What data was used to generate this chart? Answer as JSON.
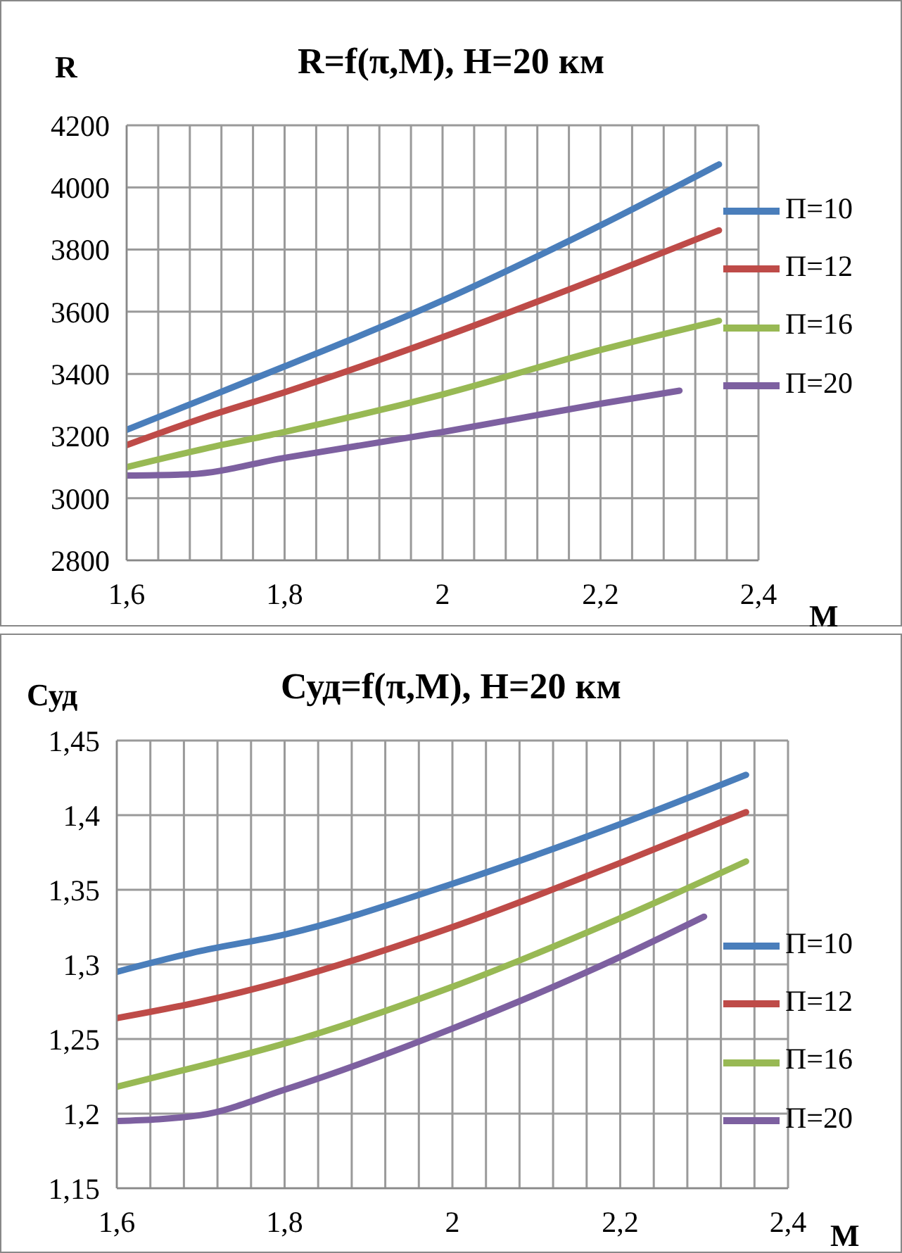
{
  "chart_data": [
    {
      "type": "line",
      "title": "R=f(π,M), H=20 км",
      "ylabel": "R",
      "xlabel": "M",
      "legend": "right",
      "grid": true,
      "line_style": "solid",
      "marker": "none",
      "xlim": [
        1.6,
        2.4
      ],
      "xticks": [
        {
          "value": 1.6,
          "label": "1,6"
        },
        {
          "value": 1.64,
          "label": null
        },
        {
          "value": 1.68,
          "label": null
        },
        {
          "value": 1.72,
          "label": null
        },
        {
          "value": 1.76,
          "label": null
        },
        {
          "value": 1.8,
          "label": "1,8"
        },
        {
          "value": 1.84,
          "label": null
        },
        {
          "value": 1.88,
          "label": null
        },
        {
          "value": 1.92,
          "label": null
        },
        {
          "value": 1.96,
          "label": null
        },
        {
          "value": 2,
          "label": "2"
        },
        {
          "value": 2.04,
          "label": null
        },
        {
          "value": 2.08,
          "label": null
        },
        {
          "value": 2.12,
          "label": null
        },
        {
          "value": 2.16,
          "label": null
        },
        {
          "value": 2.2,
          "label": "2,2"
        },
        {
          "value": 2.24,
          "label": null
        },
        {
          "value": 2.28,
          "label": null
        },
        {
          "value": 2.32,
          "label": null
        },
        {
          "value": 2.36,
          "label": null
        },
        {
          "value": 2.4,
          "label": "2,4"
        }
      ],
      "ylim": [
        2800,
        4200
      ],
      "yticks": [
        2800,
        3000,
        3200,
        3400,
        3600,
        3800,
        4000,
        4200
      ],
      "series": [
        {
          "name": "П=10",
          "color": "#4a7ebb",
          "x": [
            1.6,
            1.7,
            1.8,
            2.0,
            2.2,
            2.35
          ],
          "values": [
            3220,
            3322,
            3424,
            3636,
            3878,
            4074
          ]
        },
        {
          "name": "П=12",
          "color": "#be4b48",
          "x": [
            1.6,
            1.7,
            1.8,
            2.0,
            2.2,
            2.35
          ],
          "values": [
            3171,
            3261,
            3341,
            3518,
            3711,
            3862
          ]
        },
        {
          "name": "П=16",
          "color": "#98b954",
          "x": [
            1.6,
            1.7,
            1.8,
            2.0,
            2.2,
            2.35
          ],
          "values": [
            3100,
            3160,
            3213,
            3334,
            3477,
            3571
          ]
        },
        {
          "name": "П=20",
          "color": "#7d60a0",
          "x": [
            1.6,
            1.68,
            1.8,
            2.0,
            2.2,
            2.3
          ],
          "values": [
            3073,
            3077,
            3130,
            3213,
            3304,
            3346
          ]
        }
      ]
    },
    {
      "type": "line",
      "title": "Суд=f(π,M), H=20 км",
      "ylabel": "Суд",
      "xlabel": "M",
      "legend": "right",
      "grid": true,
      "line_style": "solid",
      "marker": "none",
      "xlim": [
        1.6,
        2.4
      ],
      "xticks": [
        {
          "value": 1.6,
          "label": "1,6"
        },
        {
          "value": 1.64,
          "label": null
        },
        {
          "value": 1.68,
          "label": null
        },
        {
          "value": 1.72,
          "label": null
        },
        {
          "value": 1.76,
          "label": null
        },
        {
          "value": 1.8,
          "label": "1,8"
        },
        {
          "value": 1.84,
          "label": null
        },
        {
          "value": 1.88,
          "label": null
        },
        {
          "value": 1.92,
          "label": null
        },
        {
          "value": 1.96,
          "label": null
        },
        {
          "value": 2,
          "label": "2"
        },
        {
          "value": 2.04,
          "label": null
        },
        {
          "value": 2.08,
          "label": null
        },
        {
          "value": 2.12,
          "label": null
        },
        {
          "value": 2.16,
          "label": null
        },
        {
          "value": 2.2,
          "label": "2,2"
        },
        {
          "value": 2.24,
          "label": null
        },
        {
          "value": 2.28,
          "label": null
        },
        {
          "value": 2.32,
          "label": null
        },
        {
          "value": 2.36,
          "label": null
        },
        {
          "value": 2.4,
          "label": "2,4"
        }
      ],
      "ylim": [
        1.15,
        1.45
      ],
      "yticks": [
        {
          "value": 1.15,
          "label": "1,15"
        },
        {
          "value": 1.2,
          "label": "1,2"
        },
        {
          "value": 1.25,
          "label": "1,25"
        },
        {
          "value": 1.3,
          "label": "1,3"
        },
        {
          "value": 1.35,
          "label": "1,35"
        },
        {
          "value": 1.4,
          "label": "1,4"
        },
        {
          "value": 1.45,
          "label": "1,45"
        }
      ],
      "series": [
        {
          "name": "П=10",
          "color": "#4a7ebb",
          "x": [
            1.6,
            1.7,
            1.8,
            2.0,
            2.2,
            2.35
          ],
          "values": [
            1.295,
            1.309,
            1.32,
            1.354,
            1.394,
            1.427
          ]
        },
        {
          "name": "П=12",
          "color": "#be4b48",
          "x": [
            1.6,
            1.7,
            1.8,
            2.0,
            2.2,
            2.35
          ],
          "values": [
            1.264,
            1.275,
            1.289,
            1.325,
            1.368,
            1.402
          ]
        },
        {
          "name": "П=16",
          "color": "#98b954",
          "x": [
            1.6,
            1.7,
            1.8,
            2.0,
            2.2,
            2.35
          ],
          "values": [
            1.218,
            1.232,
            1.247,
            1.285,
            1.331,
            1.369
          ]
        },
        {
          "name": "П=20",
          "color": "#7d60a0",
          "x": [
            1.6,
            1.7,
            1.8,
            2.0,
            2.2,
            2.3
          ],
          "values": [
            1.195,
            1.199,
            1.216,
            1.257,
            1.305,
            1.332
          ]
        }
      ]
    }
  ]
}
